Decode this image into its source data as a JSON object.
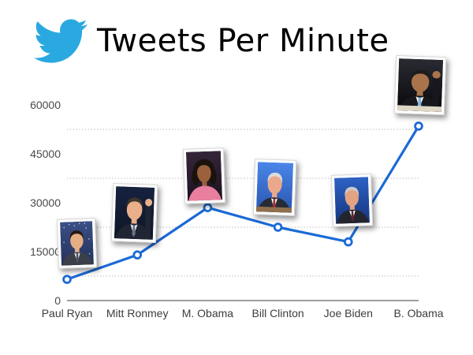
{
  "header": {
    "title": "Tweets Per Minute",
    "logo_icon": "twitter-bird-icon",
    "logo_color": "#2AA9E1",
    "title_color": "#000000"
  },
  "chart_data": {
    "type": "line",
    "title": "Tweets Per Minute",
    "categories": [
      "Paul Ryan",
      "Mitt Ronmey",
      "M. Obama",
      "Bill Clinton",
      "Joe Biden",
      "B. Obama"
    ],
    "values": [
      6500,
      14000,
      28500,
      22500,
      18000,
      53500
    ],
    "xlabel": "",
    "ylabel": "",
    "ylim": [
      0,
      60000
    ],
    "yticks": [
      0,
      15000,
      30000,
      45000,
      60000
    ],
    "gridline_values": [
      7500,
      22500,
      37500,
      52500
    ],
    "grid_style": "dotted-horizontal",
    "legend": "none",
    "line_color": "#1B6AD6",
    "marker": "open-circle",
    "marker_fill": "#ffffff",
    "axis_color": "#9e9e9e",
    "grid_color": "#bdbdbd",
    "ytick_label_color": "#4a4a4a",
    "category_label_color": "#3d3d3d",
    "annotation_note": "framed portrait photo above each data point",
    "photos": [
      {
        "person": "Paul Ryan",
        "bg1": "#3a4f86",
        "bg2": "#24335c",
        "hair": "#26190f",
        "skin": "#e6ae84",
        "suit": "#3a3f4a",
        "shirt": "#eef0f2",
        "tie": "#4a5260",
        "stars": true,
        "big_hair": false,
        "dress": false,
        "raised_hand": false,
        "podium": null
      },
      {
        "person": "Mitt Ronmey",
        "bg1": "#16223f",
        "bg2": "#0d1526",
        "hair": "#3e362c",
        "skin": "#e9b08a",
        "suit": "#1f2533",
        "shirt": "#f0f0f0",
        "tie": "#6a7486",
        "stars": false,
        "big_hair": false,
        "dress": false,
        "raised_hand": true,
        "podium": null
      },
      {
        "person": "M. Obama",
        "bg1": "#35253a",
        "bg2": "#1c1220",
        "hair": "#1a120c",
        "skin": "#9a613c",
        "suit": "#e87f9e",
        "shirt": "#f0f0f0",
        "tie": "#e87f9e",
        "stars": false,
        "big_hair": true,
        "dress": true,
        "raised_hand": false,
        "podium": null
      },
      {
        "person": "Bill Clinton",
        "bg1": "#4a86e8",
        "bg2": "#2a55b0",
        "hair": "#dcdcdc",
        "skin": "#eaa98a",
        "suit": "#272b36",
        "shirt": "#f4f4f4",
        "tie": "#a12f35",
        "stars": false,
        "big_hair": false,
        "dress": false,
        "raised_hand": false,
        "podium": "#8f6f4e"
      },
      {
        "person": "Joe Biden",
        "bg1": "#2e62c4",
        "bg2": "#16347e",
        "hair": "#c9c9c9",
        "skin": "#e2a382",
        "suit": "#23252e",
        "shirt": "#f4f4f4",
        "tie": "#5f2430",
        "stars": false,
        "big_hair": false,
        "dress": false,
        "raised_hand": false,
        "podium": null
      },
      {
        "person": "B. Obama",
        "bg1": "#2a2a33",
        "bg2": "#08080c",
        "hair": "#1c1c1c",
        "skin": "#a9744c",
        "suit": "#17171d",
        "shirt": "#f0f0f0",
        "tie": "#7fb2d8",
        "stars": false,
        "big_hair": false,
        "dress": false,
        "raised_hand": true,
        "podium": "#ded6c6"
      }
    ]
  }
}
